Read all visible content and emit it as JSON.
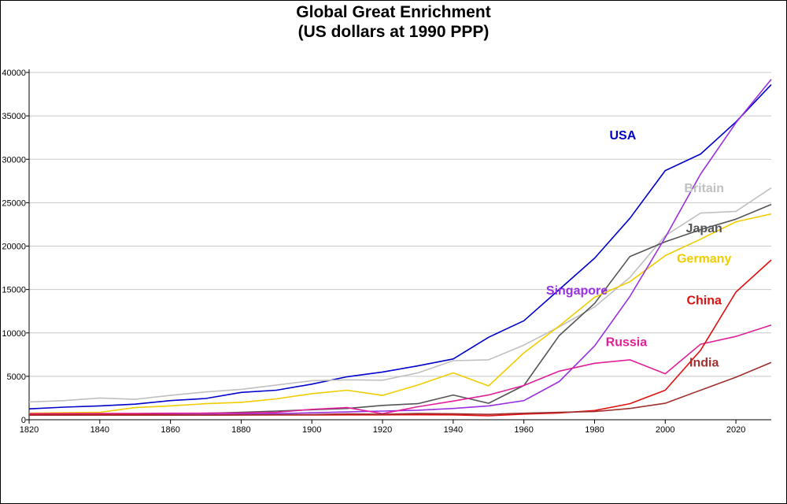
{
  "chart_data": {
    "type": "line",
    "title": "Global Great Enrichment",
    "subtitle": "(US dollars at 1990 PPP)",
    "xlabel": "",
    "ylabel": "",
    "xlim": [
      1820,
      2030
    ],
    "ylim": [
      0,
      40000
    ],
    "x_ticks": [
      1820,
      1840,
      1860,
      1880,
      1900,
      1920,
      1940,
      1960,
      1980,
      2000,
      2020
    ],
    "y_ticks": [
      0,
      5000,
      10000,
      15000,
      20000,
      25000,
      30000,
      35000,
      40000
    ],
    "y_tick_labels": [
      "0",
      "5000",
      "10000",
      "15000",
      "20000",
      "25000",
      "30000",
      "35000",
      "40000"
    ],
    "grid": "horizontal",
    "series": [
      {
        "name": "USA",
        "color": "#0000cc",
        "x": [
          1820,
          1830,
          1840,
          1850,
          1860,
          1870,
          1880,
          1890,
          1900,
          1910,
          1920,
          1930,
          1940,
          1950,
          1960,
          1970,
          1980,
          1990,
          2000,
          2010,
          2020,
          2030
        ],
        "y": [
          1250,
          1450,
          1600,
          1800,
          2200,
          2450,
          3150,
          3400,
          4100,
          4950,
          5500,
          6200,
          7000,
          9500,
          11400,
          15000,
          18600,
          23200,
          28700,
          30600,
          34300,
          38600
        ]
      },
      {
        "name": "Britain",
        "color": "#c0c0c0",
        "x": [
          1820,
          1830,
          1840,
          1850,
          1860,
          1870,
          1880,
          1890,
          1900,
          1910,
          1920,
          1930,
          1940,
          1950,
          1960,
          1970,
          1980,
          1990,
          2000,
          2010,
          2020,
          2030
        ],
        "y": [
          2050,
          2200,
          2500,
          2350,
          2800,
          3200,
          3500,
          4000,
          4500,
          4600,
          4550,
          5400,
          6800,
          6900,
          8600,
          10700,
          13000,
          16400,
          21200,
          23800,
          24000,
          26700
        ]
      },
      {
        "name": "Japan",
        "color": "#555555",
        "x": [
          1820,
          1830,
          1840,
          1850,
          1860,
          1870,
          1880,
          1890,
          1900,
          1910,
          1920,
          1930,
          1940,
          1950,
          1960,
          1970,
          1980,
          1990,
          2000,
          2010,
          2020,
          2030
        ],
        "y": [
          650,
          660,
          680,
          700,
          720,
          740,
          850,
          1000,
          1150,
          1300,
          1650,
          1850,
          2850,
          1900,
          3950,
          9700,
          13400,
          18800,
          20500,
          21900,
          23100,
          24800
        ]
      },
      {
        "name": "Germany",
        "color": "#f0cc00",
        "x": [
          1820,
          1830,
          1840,
          1850,
          1860,
          1870,
          1880,
          1890,
          1900,
          1910,
          1920,
          1930,
          1940,
          1950,
          1960,
          1970,
          1980,
          1990,
          2000,
          2010,
          2020,
          2030
        ],
        "y": [
          750,
          820,
          850,
          1400,
          1600,
          1850,
          2000,
          2400,
          3000,
          3400,
          2800,
          4000,
          5400,
          3900,
          7700,
          10800,
          14100,
          15900,
          18900,
          20800,
          22800,
          23700
        ]
      },
      {
        "name": "Singapore",
        "color": "#9a30e0",
        "x": [
          1820,
          1830,
          1840,
          1850,
          1860,
          1870,
          1880,
          1890,
          1900,
          1910,
          1920,
          1930,
          1940,
          1950,
          1960,
          1970,
          1980,
          1990,
          2000,
          2010,
          2020,
          2030
        ],
        "y": [
          600,
          600,
          600,
          600,
          600,
          600,
          650,
          700,
          800,
          900,
          1000,
          1100,
          1300,
          1600,
          2200,
          4400,
          8500,
          14200,
          21000,
          28300,
          34200,
          39200
        ]
      },
      {
        "name": "Russia",
        "color": "#e0209a",
        "x": [
          1820,
          1830,
          1840,
          1850,
          1860,
          1870,
          1880,
          1890,
          1900,
          1910,
          1920,
          1930,
          1940,
          1950,
          1960,
          1970,
          1980,
          1990,
          2000,
          2010,
          2020,
          2030
        ],
        "y": [
          700,
          710,
          720,
          730,
          750,
          760,
          780,
          850,
          1200,
          1400,
          700,
          1500,
          2150,
          2850,
          3950,
          5600,
          6500,
          6900,
          5300,
          8700,
          9600,
          10900
        ]
      },
      {
        "name": "China",
        "color": "#e01010",
        "x": [
          1820,
          1830,
          1840,
          1850,
          1860,
          1870,
          1880,
          1890,
          1900,
          1910,
          1920,
          1930,
          1940,
          1950,
          1960,
          1970,
          1980,
          1990,
          2000,
          2010,
          2020,
          2030
        ],
        "y": [
          600,
          600,
          600,
          600,
          560,
          530,
          540,
          550,
          550,
          560,
          560,
          570,
          560,
          450,
          650,
          780,
          1060,
          1850,
          3400,
          8000,
          14700,
          18400
        ]
      },
      {
        "name": "India",
        "color": "#a03030",
        "x": [
          1820,
          1830,
          1840,
          1850,
          1860,
          1870,
          1880,
          1890,
          1900,
          1910,
          1920,
          1930,
          1940,
          1950,
          1960,
          1970,
          1980,
          1990,
          2000,
          2010,
          2020,
          2030
        ],
        "y": [
          530,
          530,
          530,
          530,
          530,
          530,
          550,
          570,
          600,
          680,
          630,
          720,
          690,
          620,
          750,
          850,
          940,
          1300,
          1900,
          3400,
          4900,
          6600
        ]
      }
    ]
  }
}
